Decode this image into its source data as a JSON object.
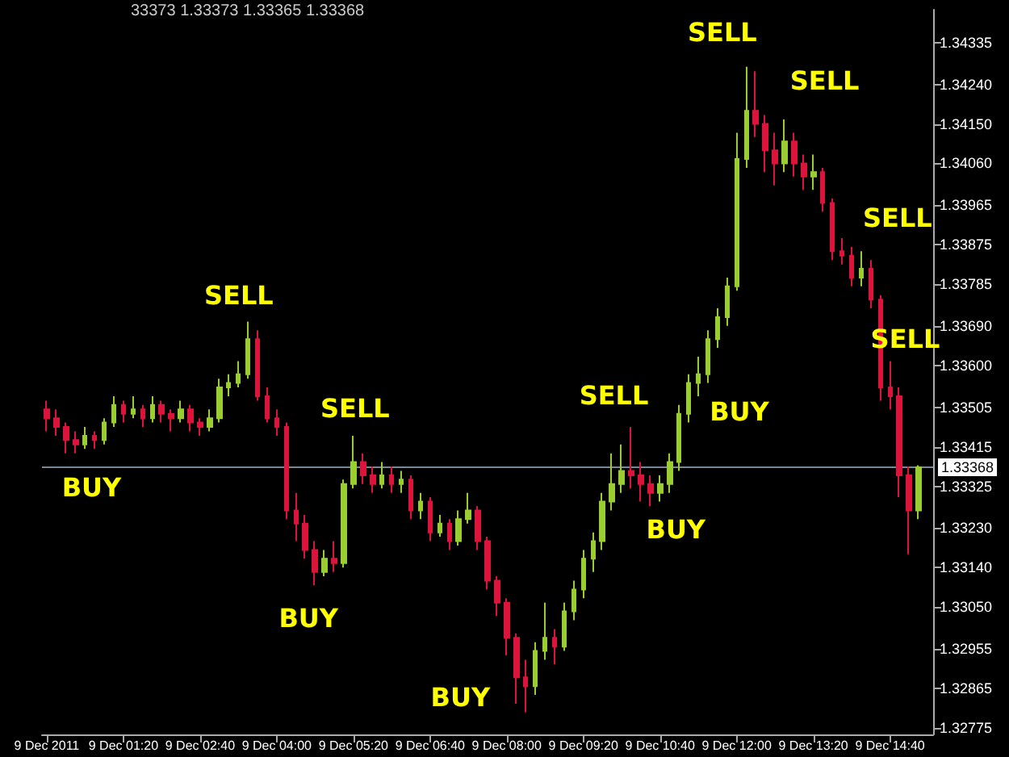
{
  "chart_data": {
    "type": "candlestick",
    "x": [
      "2011-12-09T00:00",
      "2011-12-09T00:10",
      "2011-12-09T00:20",
      "2011-12-09T00:30",
      "2011-12-09T00:40",
      "2011-12-09T00:50",
      "2011-12-09T01:00",
      "2011-12-09T01:10",
      "2011-12-09T01:20",
      "2011-12-09T01:30",
      "2011-12-09T01:40",
      "2011-12-09T01:50",
      "2011-12-09T02:00",
      "2011-12-09T02:10",
      "2011-12-09T02:20",
      "2011-12-09T02:30",
      "2011-12-09T02:40",
      "2011-12-09T02:50",
      "2011-12-09T03:00",
      "2011-12-09T03:10",
      "2011-12-09T03:20",
      "2011-12-09T03:30",
      "2011-12-09T03:40",
      "2011-12-09T03:50",
      "2011-12-09T04:00",
      "2011-12-09T04:10",
      "2011-12-09T04:20",
      "2011-12-09T04:30",
      "2011-12-09T04:40",
      "2011-12-09T04:50",
      "2011-12-09T05:00",
      "2011-12-09T05:10",
      "2011-12-09T05:20",
      "2011-12-09T05:30",
      "2011-12-09T05:40",
      "2011-12-09T05:50",
      "2011-12-09T06:00",
      "2011-12-09T06:10",
      "2011-12-09T06:20",
      "2011-12-09T06:30",
      "2011-12-09T06:40",
      "2011-12-09T06:50",
      "2011-12-09T07:00",
      "2011-12-09T07:10",
      "2011-12-09T07:20",
      "2011-12-09T07:30",
      "2011-12-09T07:40",
      "2011-12-09T07:50",
      "2011-12-09T08:00",
      "2011-12-09T08:10",
      "2011-12-09T08:20",
      "2011-12-09T08:30",
      "2011-12-09T08:40",
      "2011-12-09T08:50",
      "2011-12-09T09:00",
      "2011-12-09T09:10",
      "2011-12-09T09:20",
      "2011-12-09T09:30",
      "2011-12-09T09:40",
      "2011-12-09T09:50",
      "2011-12-09T10:00",
      "2011-12-09T10:10",
      "2011-12-09T10:20",
      "2011-12-09T10:30",
      "2011-12-09T10:40",
      "2011-12-09T10:50",
      "2011-12-09T11:00",
      "2011-12-09T11:10",
      "2011-12-09T11:20",
      "2011-12-09T11:30",
      "2011-12-09T11:40",
      "2011-12-09T11:50",
      "2011-12-09T12:00",
      "2011-12-09T12:10",
      "2011-12-09T12:20",
      "2011-12-09T12:30",
      "2011-12-09T12:40",
      "2011-12-09T12:50",
      "2011-12-09T13:00",
      "2011-12-09T13:10",
      "2011-12-09T13:20",
      "2011-12-09T13:30",
      "2011-12-09T13:40",
      "2011-12-09T13:50",
      "2011-12-09T14:00",
      "2011-12-09T14:10",
      "2011-12-09T14:20",
      "2011-12-09T14:30",
      "2011-12-09T14:40",
      "2011-12-09T14:50",
      "2011-12-09T15:00",
      "2011-12-09T15:10"
    ],
    "ohlc": [
      [
        1.335,
        1.3352,
        1.3345,
        1.3348
      ],
      [
        1.3348,
        1.335,
        1.3344,
        1.3346
      ],
      [
        1.3346,
        1.3347,
        1.334,
        1.3343
      ],
      [
        1.3343,
        1.3345,
        1.334,
        1.3342
      ],
      [
        1.3342,
        1.3346,
        1.3341,
        1.3344
      ],
      [
        1.3344,
        1.3345,
        1.3341,
        1.3343
      ],
      [
        1.3343,
        1.3348,
        1.3342,
        1.3347
      ],
      [
        1.3347,
        1.3353,
        1.3346,
        1.3351
      ],
      [
        1.3351,
        1.3352,
        1.3347,
        1.3349
      ],
      [
        1.3349,
        1.3353,
        1.3348,
        1.335
      ],
      [
        1.335,
        1.3351,
        1.3346,
        1.3348
      ],
      [
        1.3348,
        1.3353,
        1.3347,
        1.3351
      ],
      [
        1.3351,
        1.3352,
        1.3347,
        1.3349
      ],
      [
        1.3349,
        1.335,
        1.3345,
        1.3348
      ],
      [
        1.3348,
        1.3352,
        1.3347,
        1.335
      ],
      [
        1.335,
        1.3351,
        1.3345,
        1.3347
      ],
      [
        1.3347,
        1.3348,
        1.3344,
        1.3346
      ],
      [
        1.3346,
        1.335,
        1.3345,
        1.3348
      ],
      [
        1.3348,
        1.3357,
        1.3347,
        1.3355
      ],
      [
        1.3355,
        1.3358,
        1.3353,
        1.3356
      ],
      [
        1.3356,
        1.3361,
        1.3355,
        1.3358
      ],
      [
        1.3358,
        1.337,
        1.3357,
        1.3366
      ],
      [
        1.3366,
        1.3368,
        1.3352,
        1.3353
      ],
      [
        1.3353,
        1.3355,
        1.3347,
        1.3348
      ],
      [
        1.3348,
        1.335,
        1.3344,
        1.3346
      ],
      [
        1.3346,
        1.3347,
        1.3325,
        1.3327
      ],
      [
        1.3327,
        1.3331,
        1.332,
        1.3324
      ],
      [
        1.3324,
        1.3326,
        1.3316,
        1.3318
      ],
      [
        1.3318,
        1.332,
        1.331,
        1.3313
      ],
      [
        1.3313,
        1.3318,
        1.3312,
        1.3316
      ],
      [
        1.3316,
        1.332,
        1.3313,
        1.3315
      ],
      [
        1.3315,
        1.3334,
        1.3314,
        1.3333
      ],
      [
        1.3333,
        1.3344,
        1.3332,
        1.3338
      ],
      [
        1.3338,
        1.334,
        1.3333,
        1.3335
      ],
      [
        1.3335,
        1.3337,
        1.3331,
        1.3333
      ],
      [
        1.3333,
        1.3338,
        1.3332,
        1.3335
      ],
      [
        1.3335,
        1.3337,
        1.3331,
        1.3333
      ],
      [
        1.3333,
        1.3336,
        1.3331,
        1.3334
      ],
      [
        1.3334,
        1.3335,
        1.3325,
        1.3327
      ],
      [
        1.3327,
        1.3331,
        1.3325,
        1.3329
      ],
      [
        1.3329,
        1.333,
        1.332,
        1.3322
      ],
      [
        1.3322,
        1.3326,
        1.3321,
        1.3324
      ],
      [
        1.3324,
        1.3325,
        1.3318,
        1.332
      ],
      [
        1.332,
        1.3327,
        1.3319,
        1.3325
      ],
      [
        1.3325,
        1.3331,
        1.3324,
        1.3327
      ],
      [
        1.3327,
        1.3328,
        1.3318,
        1.332
      ],
      [
        1.332,
        1.3321,
        1.3309,
        1.3311
      ],
      [
        1.3311,
        1.3312,
        1.3303,
        1.3306
      ],
      [
        1.3306,
        1.3307,
        1.3294,
        1.3298
      ],
      [
        1.3298,
        1.3299,
        1.3283,
        1.3289
      ],
      [
        1.3289,
        1.3293,
        1.3281,
        1.3287
      ],
      [
        1.3287,
        1.3297,
        1.3285,
        1.3295
      ],
      [
        1.3295,
        1.3306,
        1.3293,
        1.3298
      ],
      [
        1.3298,
        1.33,
        1.3292,
        1.3296
      ],
      [
        1.3296,
        1.3306,
        1.3295,
        1.3304
      ],
      [
        1.3304,
        1.3311,
        1.3302,
        1.3309
      ],
      [
        1.3309,
        1.3318,
        1.3307,
        1.3316
      ],
      [
        1.3316,
        1.3322,
        1.3313,
        1.332
      ],
      [
        1.332,
        1.3331,
        1.3318,
        1.3329
      ],
      [
        1.3329,
        1.334,
        1.3327,
        1.3333
      ],
      [
        1.3333,
        1.3342,
        1.3331,
        1.3336
      ],
      [
        1.3336,
        1.3346,
        1.3332,
        1.3335
      ],
      [
        1.3335,
        1.3338,
        1.3329,
        1.3333
      ],
      [
        1.3333,
        1.3335,
        1.3328,
        1.3331
      ],
      [
        1.3331,
        1.3335,
        1.3329,
        1.3333
      ],
      [
        1.3333,
        1.334,
        1.3331,
        1.3338
      ],
      [
        1.3338,
        1.3351,
        1.3336,
        1.3349
      ],
      [
        1.3349,
        1.3358,
        1.3347,
        1.3356
      ],
      [
        1.3356,
        1.3362,
        1.3353,
        1.3358
      ],
      [
        1.3358,
        1.3368,
        1.3356,
        1.3366
      ],
      [
        1.3366,
        1.3373,
        1.3364,
        1.3371
      ],
      [
        1.3371,
        1.338,
        1.3369,
        1.3378
      ],
      [
        1.3378,
        1.3413,
        1.3377,
        1.3407
      ],
      [
        1.3407,
        1.3428,
        1.3405,
        1.3418
      ],
      [
        1.3418,
        1.3427,
        1.3412,
        1.3415
      ],
      [
        1.3415,
        1.3417,
        1.3404,
        1.3409
      ],
      [
        1.3409,
        1.3413,
        1.3401,
        1.3406
      ],
      [
        1.3406,
        1.3416,
        1.3404,
        1.3411
      ],
      [
        1.3411,
        1.3413,
        1.3403,
        1.3406
      ],
      [
        1.3406,
        1.3408,
        1.34,
        1.3403
      ],
      [
        1.3403,
        1.3408,
        1.34,
        1.3404
      ],
      [
        1.3404,
        1.3405,
        1.3395,
        1.3397
      ],
      [
        1.3397,
        1.3398,
        1.3384,
        1.3386
      ],
      [
        1.3386,
        1.3389,
        1.3383,
        1.3385
      ],
      [
        1.3385,
        1.3387,
        1.3378,
        1.338
      ],
      [
        1.338,
        1.3386,
        1.3378,
        1.3382
      ],
      [
        1.3382,
        1.3384,
        1.3373,
        1.3375
      ],
      [
        1.3375,
        1.3376,
        1.3352,
        1.3355
      ],
      [
        1.3355,
        1.3361,
        1.335,
        1.3353
      ],
      [
        1.3353,
        1.3355,
        1.333,
        1.3335
      ],
      [
        1.3335,
        1.3337,
        1.3317,
        1.3327
      ],
      [
        1.3327,
        1.33373,
        1.3325,
        1.33368
      ]
    ],
    "colors": [
      "#dc143c",
      "#dc143c",
      "#dc143c",
      "#dc143c",
      "#9acd32",
      "#dc143c",
      "#9acd32",
      "#9acd32",
      "#dc143c",
      "#9acd32",
      "#dc143c",
      "#9acd32",
      "#dc143c",
      "#dc143c",
      "#9acd32",
      "#dc143c",
      "#dc143c",
      "#9acd32",
      "#9acd32",
      "#9acd32",
      "#9acd32",
      "#9acd32",
      "#dc143c",
      "#dc143c",
      "#dc143c",
      "#dc143c",
      "#dc143c",
      "#dc143c",
      "#dc143c",
      "#9acd32",
      "#dc143c",
      "#9acd32",
      "#9acd32",
      "#dc143c",
      "#dc143c",
      "#9acd32",
      "#dc143c",
      "#9acd32",
      "#dc143c",
      "#9acd32",
      "#dc143c",
      "#9acd32",
      "#dc143c",
      "#9acd32",
      "#9acd32",
      "#dc143c",
      "#dc143c",
      "#dc143c",
      "#dc143c",
      "#dc143c",
      "#dc143c",
      "#9acd32",
      "#9acd32",
      "#dc143c",
      "#9acd32",
      "#9acd32",
      "#9acd32",
      "#9acd32",
      "#9acd32",
      "#9acd32",
      "#9acd32",
      "#dc143c",
      "#dc143c",
      "#dc143c",
      "#9acd32",
      "#9acd32",
      "#9acd32",
      "#9acd32",
      "#9acd32",
      "#9acd32",
      "#9acd32",
      "#9acd32",
      "#9acd32",
      "#9acd32",
      "#dc143c",
      "#dc143c",
      "#dc143c",
      "#9acd32",
      "#dc143c",
      "#dc143c",
      "#9acd32",
      "#dc143c",
      "#dc143c",
      "#dc143c",
      "#dc143c",
      "#9acd32",
      "#dc143c",
      "#dc143c",
      "#dc143c",
      "#dc143c",
      "#dc143c",
      "#9acd32"
    ],
    "xlim": [
      "2011-12-08T23:55",
      "2011-12-09T15:25"
    ],
    "xticks": [
      {
        "value": "2011-12-09T00:00",
        "label": "9 Dec 2011"
      },
      {
        "value": "2011-12-09T01:20",
        "label": "9 Dec 01:20"
      },
      {
        "value": "2011-12-09T02:40",
        "label": "9 Dec 02:40"
      },
      {
        "value": "2011-12-09T04:00",
        "label": "9 Dec 04:00"
      },
      {
        "value": "2011-12-09T05:20",
        "label": "9 Dec 05:20"
      },
      {
        "value": "2011-12-09T06:40",
        "label": "9 Dec 06:40"
      },
      {
        "value": "2011-12-09T08:00",
        "label": "9 Dec 08:00"
      },
      {
        "value": "2011-12-09T09:20",
        "label": "9 Dec 09:20"
      },
      {
        "value": "2011-12-09T10:40",
        "label": "9 Dec 10:40"
      },
      {
        "value": "2011-12-09T12:00",
        "label": "9 Dec 12:00"
      },
      {
        "value": "2011-12-09T13:20",
        "label": "9 Dec 13:20"
      },
      {
        "value": "2011-12-09T14:40",
        "label": "9 Dec 14:40"
      }
    ],
    "ylim": [
      1.3276,
      1.3441
    ],
    "yticks": [
      1.34335,
      {
        "value": 1.3424,
        "label": "1.34240"
      },
      {
        "value": 1.3415,
        "label": "1.34150"
      },
      {
        "value": 1.3406,
        "label": "1.34060"
      },
      1.33965,
      1.33875,
      1.33785,
      {
        "value": 1.3369,
        "label": "1.33690"
      },
      {
        "value": 1.336,
        "label": "1.33600"
      },
      1.33505,
      1.33415,
      1.33325,
      {
        "value": 1.3323,
        "label": "1.33230"
      },
      {
        "value": 1.3314,
        "label": "1.33140"
      },
      {
        "value": 1.3305,
        "label": "1.33050"
      },
      1.32955,
      1.32865,
      1.32775
    ],
    "ref_lines": [
      {
        "axis": "y",
        "value": 1.33368,
        "label": "1.33368",
        "color": "#778899"
      }
    ],
    "annotations": [
      "33373 1.33373 1.33365 1.33368",
      "BUY",
      "SELL",
      "BUY",
      "SELL",
      "BUY",
      "SELL",
      "BUY",
      "BUY",
      "SELL",
      "SELL",
      "SELL",
      "SELL"
    ]
  }
}
